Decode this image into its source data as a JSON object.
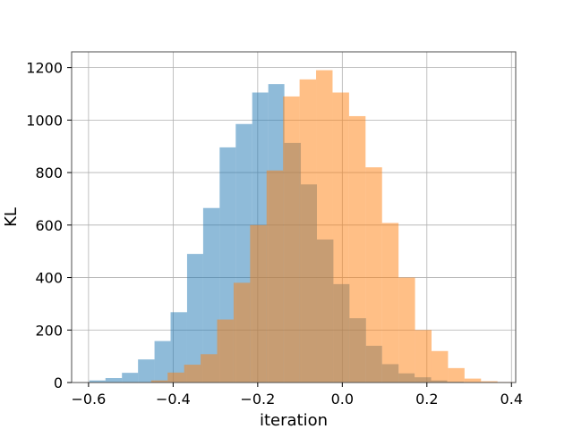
{
  "chart_data": {
    "type": "histogram",
    "xlabel": "iteration",
    "ylabel": "KL",
    "xlim": [
      -0.64,
      0.41
    ],
    "ylim": [
      0,
      1260
    ],
    "xticks": [
      -0.6,
      -0.4,
      -0.2,
      0.0,
      0.2,
      0.4
    ],
    "xtick_labels": [
      "−0.6",
      "−0.4",
      "−0.2",
      "0.0",
      "0.2",
      "0.4"
    ],
    "yticks": [
      0,
      200,
      400,
      600,
      800,
      1000,
      1200
    ],
    "ytick_labels": [
      "0",
      "200",
      "400",
      "600",
      "800",
      "1000",
      "1200"
    ],
    "grid": true,
    "legend": "none",
    "series": [
      {
        "color": "#1f77b4",
        "opacity": 0.5,
        "bins": [
          {
            "x0": -0.598,
            "x1": -0.56,
            "count": 8
          },
          {
            "x0": -0.56,
            "x1": -0.521,
            "count": 17
          },
          {
            "x0": -0.521,
            "x1": -0.483,
            "count": 37
          },
          {
            "x0": -0.483,
            "x1": -0.444,
            "count": 88
          },
          {
            "x0": -0.444,
            "x1": -0.406,
            "count": 158
          },
          {
            "x0": -0.406,
            "x1": -0.367,
            "count": 268
          },
          {
            "x0": -0.367,
            "x1": -0.329,
            "count": 490
          },
          {
            "x0": -0.329,
            "x1": -0.29,
            "count": 665
          },
          {
            "x0": -0.29,
            "x1": -0.252,
            "count": 896
          },
          {
            "x0": -0.252,
            "x1": -0.213,
            "count": 985
          },
          {
            "x0": -0.213,
            "x1": -0.175,
            "count": 1105
          },
          {
            "x0": -0.175,
            "x1": -0.137,
            "count": 1137
          },
          {
            "x0": -0.137,
            "x1": -0.098,
            "count": 913
          },
          {
            "x0": -0.098,
            "x1": -0.06,
            "count": 755
          },
          {
            "x0": -0.06,
            "x1": -0.021,
            "count": 545
          },
          {
            "x0": -0.021,
            "x1": 0.017,
            "count": 375
          },
          {
            "x0": 0.017,
            "x1": 0.056,
            "count": 245
          },
          {
            "x0": 0.056,
            "x1": 0.094,
            "count": 140
          },
          {
            "x0": 0.094,
            "x1": 0.133,
            "count": 70
          },
          {
            "x0": 0.133,
            "x1": 0.171,
            "count": 35
          },
          {
            "x0": 0.171,
            "x1": 0.21,
            "count": 20
          },
          {
            "x0": 0.21,
            "x1": 0.248,
            "count": 8
          },
          {
            "x0": 0.248,
            "x1": 0.287,
            "count": 3
          }
        ]
      },
      {
        "color": "#ff7f0e",
        "opacity": 0.5,
        "bins": [
          {
            "x0": -0.452,
            "x1": -0.413,
            "count": 8
          },
          {
            "x0": -0.413,
            "x1": -0.374,
            "count": 38
          },
          {
            "x0": -0.374,
            "x1": -0.335,
            "count": 68
          },
          {
            "x0": -0.335,
            "x1": -0.296,
            "count": 108
          },
          {
            "x0": -0.296,
            "x1": -0.257,
            "count": 240
          },
          {
            "x0": -0.257,
            "x1": -0.218,
            "count": 380
          },
          {
            "x0": -0.218,
            "x1": -0.179,
            "count": 600
          },
          {
            "x0": -0.179,
            "x1": -0.14,
            "count": 808
          },
          {
            "x0": -0.14,
            "x1": -0.101,
            "count": 1090
          },
          {
            "x0": -0.101,
            "x1": -0.062,
            "count": 1155
          },
          {
            "x0": -0.062,
            "x1": -0.023,
            "count": 1190
          },
          {
            "x0": -0.023,
            "x1": 0.016,
            "count": 1105
          },
          {
            "x0": 0.016,
            "x1": 0.055,
            "count": 1015
          },
          {
            "x0": 0.055,
            "x1": 0.094,
            "count": 820
          },
          {
            "x0": 0.094,
            "x1": 0.133,
            "count": 608
          },
          {
            "x0": 0.133,
            "x1": 0.172,
            "count": 400
          },
          {
            "x0": 0.172,
            "x1": 0.211,
            "count": 200
          },
          {
            "x0": 0.211,
            "x1": 0.25,
            "count": 120
          },
          {
            "x0": 0.25,
            "x1": 0.289,
            "count": 55
          },
          {
            "x0": 0.289,
            "x1": 0.328,
            "count": 15
          },
          {
            "x0": 0.328,
            "x1": 0.367,
            "count": 5
          },
          {
            "x0": 0.367,
            "x1": 0.406,
            "count": 2
          }
        ]
      }
    ]
  }
}
